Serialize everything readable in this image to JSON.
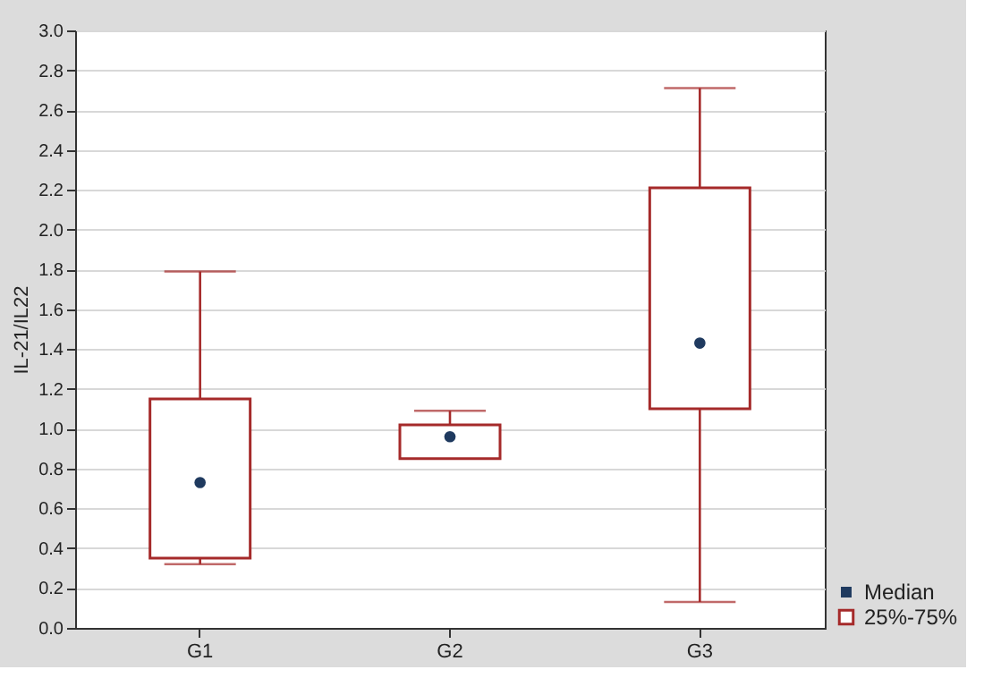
{
  "chart_data": {
    "type": "box",
    "ylabel": "IL-21/IL22",
    "categories": [
      "G1",
      "G2",
      "G3"
    ],
    "series": [
      {
        "name": "Median",
        "type": "scatter",
        "marker": "circle",
        "color": "#1f3a5f",
        "x": [
          "G1",
          "G2",
          "G3"
        ],
        "values": [
          0.73,
          0.96,
          1.43
        ]
      },
      {
        "name": "25%-75%",
        "type": "box",
        "color": "#a52a2a",
        "boxes": [
          {
            "low": 0.32,
            "q1": 0.35,
            "q3": 1.15,
            "high": 1.79
          },
          {
            "low": 0.85,
            "q1": 0.85,
            "q3": 1.02,
            "high": 1.09
          },
          {
            "low": 0.13,
            "q1": 1.1,
            "q3": 2.21,
            "high": 2.71
          }
        ]
      }
    ],
    "ylim": [
      0,
      3
    ],
    "yticks": [
      {
        "value": 0,
        "label": "0.0"
      },
      {
        "value": 0.2,
        "label": "0.2"
      },
      {
        "value": 0.4,
        "label": "0.4"
      },
      {
        "value": 0.6,
        "label": "0.6"
      },
      {
        "value": 0.8,
        "label": "0.8"
      },
      {
        "value": 1,
        "label": "1.0"
      },
      {
        "value": 1.2,
        "label": "1.2"
      },
      {
        "value": 1.4,
        "label": "1.4"
      },
      {
        "value": 1.6,
        "label": "1.6"
      },
      {
        "value": 1.8,
        "label": "1.8"
      },
      {
        "value": 2,
        "label": "2.0"
      },
      {
        "value": 2.2,
        "label": "2.2"
      },
      {
        "value": 2.4,
        "label": "2.4"
      },
      {
        "value": 2.6,
        "label": "2.6"
      },
      {
        "value": 2.8,
        "label": "2.8"
      },
      {
        "value": 3,
        "label": "3.0"
      }
    ],
    "grid": "y",
    "legend": "bottom right"
  }
}
